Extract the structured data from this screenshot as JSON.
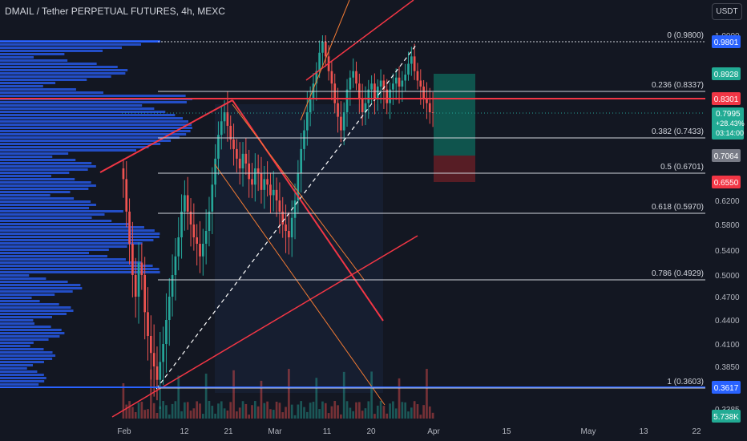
{
  "header": {
    "title": "DMAIL / Tether PERPETUAL FUTURES, 4h, MEXC",
    "currency_button": "USDT"
  },
  "colors": {
    "background": "#131722",
    "bull": "#26a69a",
    "bear": "#ef5350",
    "channel": "#f23645",
    "fib_line": "#d1d4dc",
    "volume_profile": "#2962ff",
    "target_zone": "#0f5b52",
    "stop_zone": "#5b1d26"
  },
  "chart_data": {
    "type": "candlestick",
    "symbol": "DMAIL / Tether PERPETUAL FUTURES",
    "interval": "4h",
    "exchange": "MEXC",
    "x_ticks": [
      "Feb",
      "12",
      "21",
      "Mar",
      "11",
      "20",
      "Apr",
      "15",
      "May",
      "13",
      "22"
    ],
    "y_ticks": [
      1.0,
      0.62,
      0.58,
      0.54,
      0.5,
      0.47,
      0.44,
      0.41,
      0.385,
      0.3385
    ],
    "y_tick_labels": [
      "1.0000",
      "0.6200",
      "0.5800",
      "0.5400",
      "0.5000",
      "0.4700",
      "0.4400",
      "0.4100",
      "0.3850",
      "0.3385"
    ],
    "ylim": [
      0.3385,
      1.0
    ],
    "fib_levels": [
      {
        "label": "0 (0.9800)",
        "value": 0.98
      },
      {
        "label": "0.236 (0.8337)",
        "value": 0.8337
      },
      {
        "label": "0.382 (0.7433)",
        "value": 0.7433
      },
      {
        "label": "0.5 (0.6701)",
        "value": 0.6701
      },
      {
        "label": "0.618 (0.5970)",
        "value": 0.597
      },
      {
        "label": "0.786 (0.4929)",
        "value": 0.4929
      },
      {
        "label": "1 (0.3603)",
        "value": 0.3603
      }
    ],
    "price_badges": [
      {
        "label": "0.9801",
        "kind": "blue"
      },
      {
        "label": "0.8928",
        "kind": "green"
      },
      {
        "label": "0.8301",
        "kind": "red"
      },
      {
        "label": "0.7064",
        "kind": "gray"
      },
      {
        "label": "0.6550",
        "kind": "red"
      },
      {
        "label": "0.3617",
        "kind": "blue"
      },
      {
        "label": "5.738K",
        "kind": "teal"
      }
    ],
    "current_price": {
      "price": "0.7995",
      "change": "+28.43%",
      "countdown": "03:14:00"
    },
    "position": {
      "target": 0.8928,
      "entry": 0.7064,
      "stop": 0.655
    },
    "candles_close": [
      0.66,
      0.6,
      0.55,
      0.5,
      0.47,
      0.52,
      0.5,
      0.45,
      0.42,
      0.4,
      0.385,
      0.37,
      0.39,
      0.41,
      0.44,
      0.47,
      0.5,
      0.53,
      0.56,
      0.6,
      0.63,
      0.6,
      0.58,
      0.56,
      0.55,
      0.53,
      0.55,
      0.57,
      0.6,
      0.65,
      0.7,
      0.75,
      0.78,
      0.8,
      0.77,
      0.74,
      0.72,
      0.7,
      0.68,
      0.71,
      0.69,
      0.66,
      0.65,
      0.68,
      0.67,
      0.64,
      0.66,
      0.65,
      0.63,
      0.64,
      0.62,
      0.6,
      0.58,
      0.57,
      0.56,
      0.59,
      0.62,
      0.67,
      0.72,
      0.76,
      0.8,
      0.83,
      0.86,
      0.9,
      0.95,
      0.98,
      0.94,
      0.9,
      0.86,
      0.82,
      0.79,
      0.76,
      0.8,
      0.84,
      0.88,
      0.9,
      0.86,
      0.83,
      0.8,
      0.82,
      0.84,
      0.86,
      0.83,
      0.85,
      0.87,
      0.84,
      0.82,
      0.84,
      0.86,
      0.88,
      0.85,
      0.87,
      0.89,
      0.92,
      0.94,
      0.9,
      0.87,
      0.85,
      0.83,
      0.82,
      0.8,
      0.7995
    ]
  }
}
